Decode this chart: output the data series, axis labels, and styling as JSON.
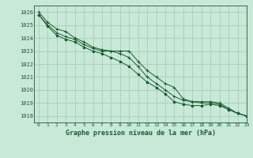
{
  "title": "Graphe pression niveau de la mer (hPa)",
  "background_color": "#c8e8d8",
  "grid_color": "#a0c8b0",
  "line_color": "#1a5c30",
  "xlim": [
    -0.5,
    23
  ],
  "ylim": [
    1017.5,
    1026.5
  ],
  "yticks": [
    1018,
    1019,
    1020,
    1021,
    1022,
    1023,
    1024,
    1025,
    1026
  ],
  "xticks": [
    0,
    1,
    2,
    3,
    4,
    5,
    6,
    7,
    8,
    9,
    10,
    11,
    12,
    13,
    14,
    15,
    16,
    17,
    18,
    19,
    20,
    21,
    22,
    23
  ],
  "line1": [
    1026.0,
    1025.2,
    1024.7,
    1024.5,
    1024.0,
    1023.7,
    1023.3,
    1023.1,
    1023.0,
    1023.0,
    1023.0,
    1022.2,
    1021.5,
    1021.0,
    1020.5,
    1020.2,
    1019.3,
    1019.1,
    1019.1,
    1019.1,
    1019.0,
    1018.6,
    1018.2,
    1018.0
  ],
  "line2": [
    1025.8,
    1025.0,
    1024.4,
    1024.1,
    1023.9,
    1023.5,
    1023.2,
    1023.0,
    1023.0,
    1022.8,
    1022.5,
    1021.8,
    1021.0,
    1020.5,
    1020.0,
    1019.5,
    1019.2,
    1019.1,
    1019.0,
    1019.0,
    1018.9,
    1018.5,
    1018.2,
    1018.0
  ],
  "line3": [
    1025.8,
    1024.9,
    1024.2,
    1023.9,
    1023.7,
    1023.3,
    1023.0,
    1022.8,
    1022.5,
    1022.2,
    1021.8,
    1021.2,
    1020.6,
    1020.2,
    1019.7,
    1019.1,
    1018.9,
    1018.8,
    1018.8,
    1018.9,
    1018.8,
    1018.5,
    1018.2,
    1018.0
  ]
}
